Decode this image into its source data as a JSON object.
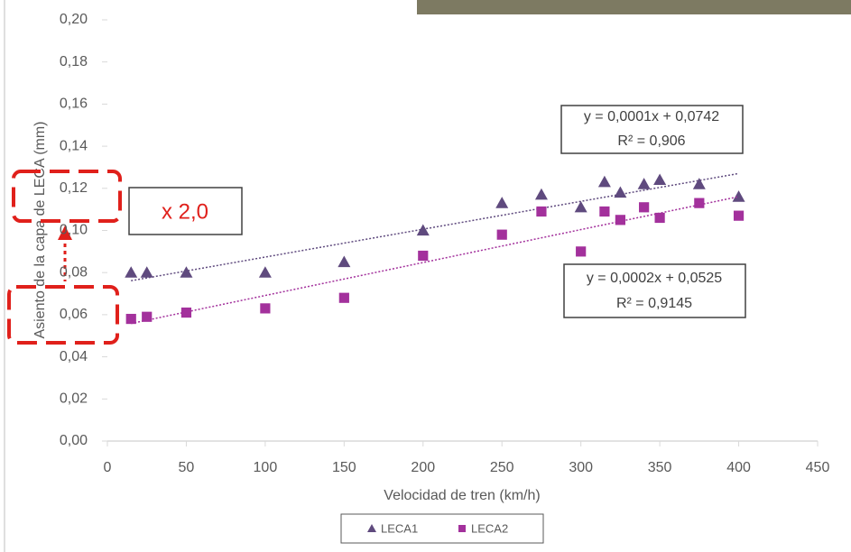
{
  "chart_data": {
    "type": "scatter",
    "x_label": "Velocidad de tren (km/h)",
    "y_label": "Asiento de la capa de LECA (mm)",
    "xlim": [
      0,
      450
    ],
    "xticks": [
      0,
      50,
      100,
      150,
      200,
      250,
      300,
      350,
      400,
      450
    ],
    "ylim": [
      0,
      0.2
    ],
    "yticks": [
      {
        "value": 0,
        "label": "0,00"
      },
      {
        "value": 0.02,
        "label": "0,02"
      },
      {
        "value": 0.04,
        "label": "0,04"
      },
      {
        "value": 0.06,
        "label": "0,06"
      },
      {
        "value": 0.08,
        "label": "0,08"
      },
      {
        "value": 0.1,
        "label": "0,10"
      },
      {
        "value": 0.12,
        "label": "0,12"
      },
      {
        "value": 0.14,
        "label": "0,14"
      },
      {
        "value": 0.16,
        "label": "0,16"
      },
      {
        "value": 0.18,
        "label": "0,18"
      },
      {
        "value": 0.2,
        "label": "0,20"
      }
    ],
    "trendline": true,
    "series": [
      {
        "name": "LECA1",
        "color": "#5f4a7e",
        "marker": "triangle",
        "x": [
          15,
          25,
          50,
          100,
          150,
          200,
          250,
          275,
          300,
          315,
          325,
          340,
          350,
          375,
          400
        ],
        "values": [
          0.08,
          0.08,
          0.08,
          0.08,
          0.085,
          0.1,
          0.113,
          0.117,
          0.111,
          0.123,
          0.118,
          0.122,
          0.124,
          0.122,
          0.116
        ],
        "trend_label": [
          "y = 0,0001x + 0,0742",
          "R² = 0,906"
        ]
      },
      {
        "name": "LECA2",
        "color": "#a3319c",
        "marker": "square",
        "x": [
          15,
          25,
          50,
          100,
          150,
          200,
          250,
          275,
          300,
          315,
          325,
          340,
          350,
          375,
          400
        ],
        "values": [
          0.058,
          0.059,
          0.061,
          0.063,
          0.068,
          0.088,
          0.098,
          0.109,
          0.09,
          0.109,
          0.105,
          0.111,
          0.106,
          0.113,
          0.107
        ],
        "trend_label": [
          "y = 0,0002x + 0,0525",
          "R² = 0,9145"
        ]
      }
    ],
    "factor_label": "x 2,0"
  }
}
